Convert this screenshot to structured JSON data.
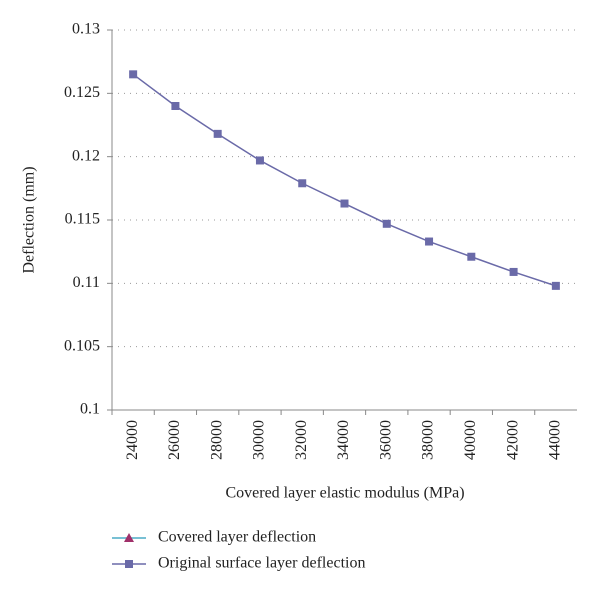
{
  "chart_data": {
    "type": "line",
    "x_label": "Covered layer elastic modulus (MPa)",
    "y_label": "Deflection (mm)",
    "categories": [
      "24000",
      "26000",
      "28000",
      "30000",
      "32000",
      "34000",
      "36000",
      "38000",
      "40000",
      "42000",
      "44000"
    ],
    "series": [
      {
        "name": "Covered layer deflection",
        "color": "#4bacc6",
        "marker_color": "#a0306a",
        "marker": "triangle",
        "values": [
          null,
          null,
          null,
          null,
          null,
          null,
          null,
          null,
          null,
          null,
          null
        ]
      },
      {
        "name": "Original surface layer deflection",
        "color": "#6a6aa8",
        "marker_color": "#6a6aa8",
        "marker": "square",
        "values": [
          0.1265,
          0.124,
          0.1218,
          0.1197,
          0.1179,
          0.1163,
          0.1147,
          0.1133,
          0.1121,
          0.1109,
          0.1098
        ]
      }
    ],
    "ylim": [
      0.1,
      0.13
    ],
    "yticks": [
      0.1,
      0.105,
      0.11,
      0.115,
      0.12,
      0.125,
      0.13
    ],
    "grid": true,
    "legend": "bottom"
  }
}
